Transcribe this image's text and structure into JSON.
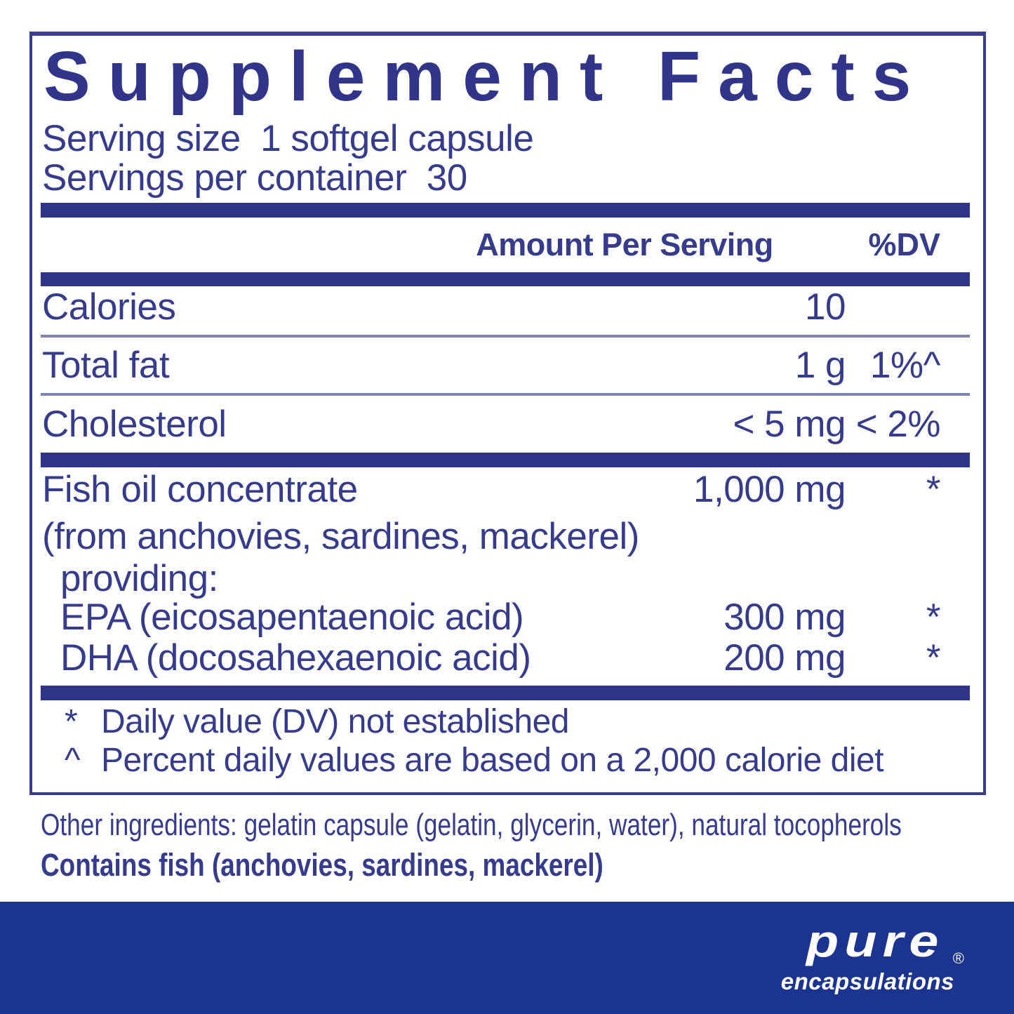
{
  "colors": {
    "navy_text": "#363b8c",
    "navy_bars": "#2e3487",
    "thin_rule": "#7e84b0",
    "footer_blue": "#1b348f",
    "background": "#ffffff",
    "logo_white": "#ffffff"
  },
  "panel": {
    "title": "Supplement Facts",
    "serving_size": "Serving size  1 softgel capsule",
    "servings_per_container": "Servings per container  30",
    "header": {
      "amount": "Amount Per Serving",
      "dv": "%DV"
    },
    "rows": [
      {
        "name": "Calories",
        "amount": "10",
        "dv": ""
      },
      {
        "name": "Total fat",
        "amount": "1 g",
        "dv": "1%^"
      },
      {
        "name": "Cholesterol",
        "amount": "< 5 mg",
        "dv": "< 2%"
      }
    ],
    "ingredient_rows": [
      {
        "name": "Fish oil concentrate",
        "amount": "1,000 mg",
        "dv": "*"
      },
      {
        "name": "(from anchovies, sardines, mackerel)",
        "amount": "",
        "dv": ""
      },
      {
        "name": "providing:",
        "amount": "",
        "dv": ""
      },
      {
        "name": "EPA (eicosapentaenoic acid)",
        "amount": "300 mg",
        "dv": "*"
      },
      {
        "name": "DHA (docosahexaenoic acid)",
        "amount": "200 mg",
        "dv": "*"
      }
    ],
    "footnotes": [
      {
        "symbol": "*",
        "text": "Daily value (DV) not established"
      },
      {
        "symbol": "^",
        "text": "Percent daily values are based on a 2,000 calorie diet"
      }
    ]
  },
  "other_ingredients": "Other ingredients: gelatin capsule (gelatin, glycerin, water), natural tocopherols",
  "contains_statement": "Contains fish (anchovies, sardines, mackerel)",
  "footer": {
    "brand_top": "pure",
    "brand_bottom": "encapsulations",
    "reg_mark": "®"
  }
}
